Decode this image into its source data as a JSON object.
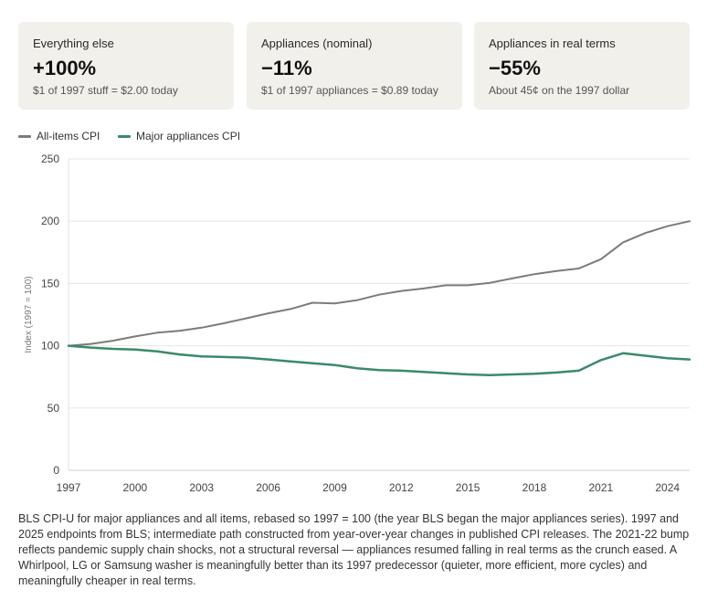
{
  "cards": [
    {
      "label": "Everything else",
      "value": "+100%",
      "sub": "$1 of 1997 stuff = $2.00 today"
    },
    {
      "label": "Appliances (nominal)",
      "value": "−11%",
      "sub": "$1 of 1997 appliances = $0.89 today"
    },
    {
      "label": "Appliances in real terms",
      "value": "−55%",
      "sub": "About 45¢ on the 1997 dollar"
    }
  ],
  "colors": {
    "all_items": "#7d7b79",
    "appliances": "#3a8a68",
    "card_bg": "#f2f0ea",
    "grid": "#e6e6e6"
  },
  "chart_data": {
    "type": "line",
    "ylabel": "Index (1997 = 100)",
    "xlim": [
      1997,
      2025
    ],
    "ylim": [
      0,
      250
    ],
    "yticks": [
      0,
      50,
      100,
      150,
      200,
      250
    ],
    "xticks": [
      1997,
      2000,
      2003,
      2006,
      2009,
      2012,
      2015,
      2018,
      2021,
      2024
    ],
    "grid": true,
    "legend_position": "top-left",
    "series": [
      {
        "name": "All-items CPI",
        "color": "#7d7b79",
        "x": [
          1997,
          1998,
          1999,
          2000,
          2001,
          2002,
          2003,
          2004,
          2005,
          2006,
          2007,
          2008,
          2009,
          2010,
          2011,
          2012,
          2013,
          2014,
          2015,
          2016,
          2017,
          2018,
          2019,
          2020,
          2021,
          2022,
          2023,
          2024,
          2025
        ],
        "y": [
          100,
          101.5,
          104,
          107.5,
          110.5,
          112,
          114.5,
          118,
          122,
          126,
          129.5,
          134.5,
          134,
          136.5,
          141,
          144,
          146,
          148.5,
          148.5,
          150.5,
          154,
          157.5,
          160,
          162,
          169.5,
          183,
          190.5,
          196,
          200
        ]
      },
      {
        "name": "Major appliances CPI",
        "color": "#3a8a68",
        "x": [
          1997,
          1998,
          1999,
          2000,
          2001,
          2002,
          2003,
          2004,
          2005,
          2006,
          2007,
          2008,
          2009,
          2010,
          2011,
          2012,
          2013,
          2014,
          2015,
          2016,
          2017,
          2018,
          2019,
          2020,
          2021,
          2022,
          2023,
          2024,
          2025
        ],
        "y": [
          100,
          98.5,
          97.5,
          97,
          95.5,
          93,
          91.5,
          91,
          90.5,
          89,
          87.5,
          86,
          84.5,
          82,
          80.5,
          80,
          79,
          78,
          77,
          76.5,
          77,
          77.5,
          78.5,
          80,
          88.5,
          94,
          92,
          90,
          89
        ]
      }
    ]
  },
  "caption": "BLS CPI-U for major appliances and all items, rebased so 1997 = 100 (the year BLS began the major appliances series). 1997 and 2025 endpoints from BLS; intermediate path constructed from year-over-year changes in published CPI releases. The 2021-22 bump reflects pandemic supply chain shocks, not a structural reversal — appliances resumed falling in real terms as the crunch eased. A Whirlpool, LG or Samsung washer is meaningfully better than its 1997 predecessor (quieter, more efficient, more cycles) and meaningfully cheaper in real terms."
}
